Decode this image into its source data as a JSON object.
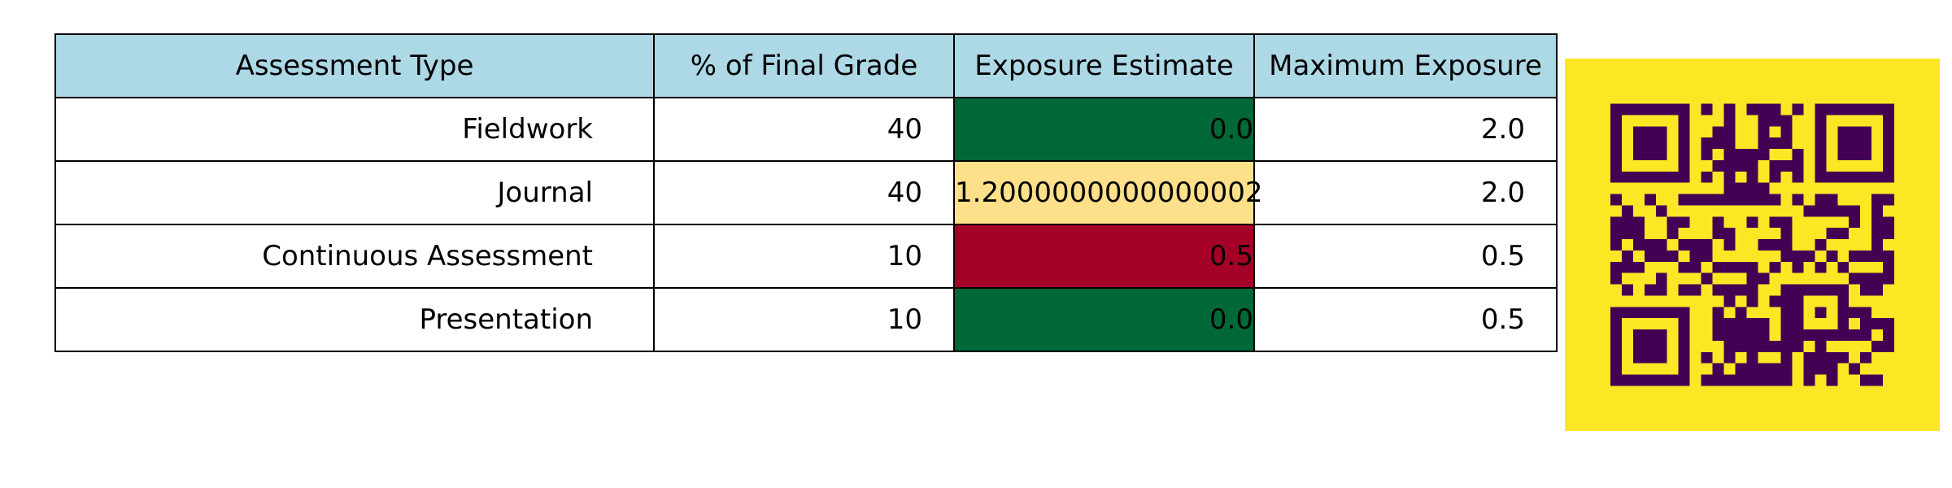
{
  "chart_data": {
    "type": "table",
    "columns": [
      "Assessment Type",
      "% of Final Grade",
      "Exposure Estimate",
      "Maximum Exposure"
    ],
    "rows": [
      {
        "assessment": "Fieldwork",
        "percent": "40",
        "exposure": "0.0",
        "max": "2.0"
      },
      {
        "assessment": "Journal",
        "percent": "40",
        "exposure": "1.2000000000000002",
        "max": "2.0"
      },
      {
        "assessment": "Continuous Assessment",
        "percent": "10",
        "exposure": "0.5",
        "max": "0.5"
      },
      {
        "assessment": "Presentation",
        "percent": "10",
        "exposure": "0.0",
        "max": "0.5"
      }
    ],
    "exposure_cell_colors": [
      "#006837",
      "#fee08b",
      "#a50026",
      "#006837"
    ],
    "header_color": "#add8e6"
  },
  "qr_code": {
    "background": "#fde725",
    "foreground": "#440154"
  }
}
